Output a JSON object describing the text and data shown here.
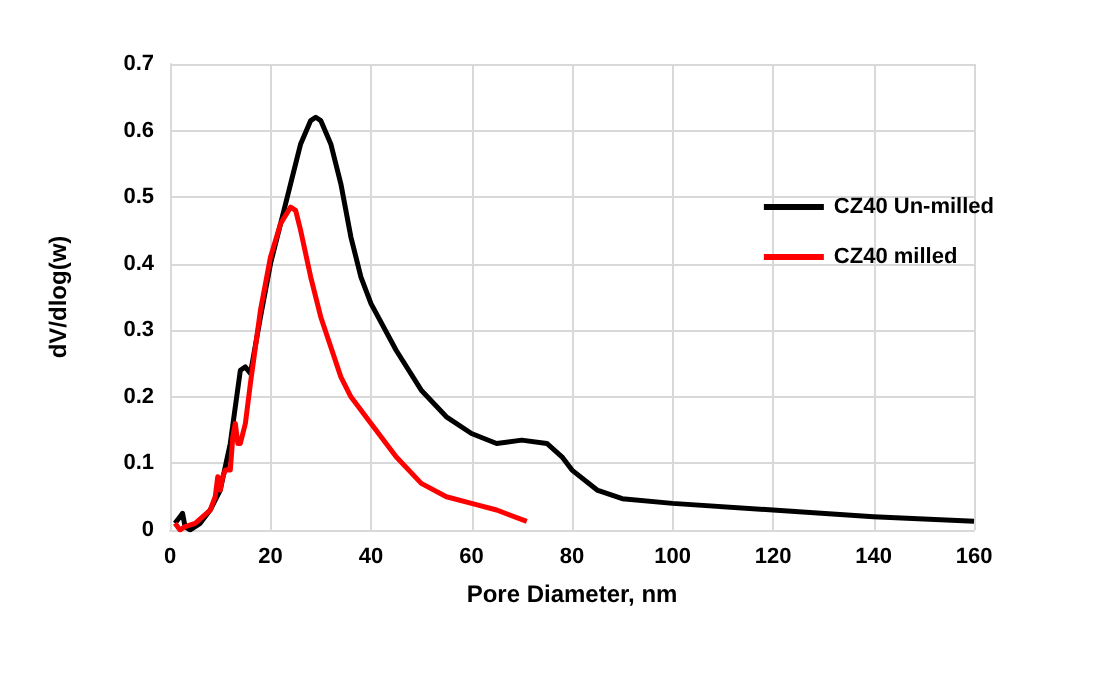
{
  "chart_data": {
    "type": "line",
    "xlabel": "Pore Diameter, nm",
    "ylabel": "dV/dlog(w)",
    "xlim": [
      0,
      160
    ],
    "xticks": [
      0,
      20,
      40,
      60,
      80,
      100,
      120,
      140,
      160
    ],
    "ylim": [
      0,
      0.7
    ],
    "yticks": [
      0,
      0.1,
      0.2,
      0.3,
      0.4,
      0.5,
      0.6,
      0.7
    ],
    "grid": true,
    "legend": "right",
    "marker": "none",
    "line_style": "solid",
    "series": [
      {
        "name": "CZ40 Un-milled",
        "color": "#000000",
        "x": [
          1,
          2,
          2.5,
          3,
          4,
          6,
          8,
          10,
          12,
          14,
          15,
          16,
          18,
          20,
          22,
          24,
          26,
          28,
          29,
          30,
          32,
          34,
          36,
          38,
          40,
          45,
          50,
          55,
          60,
          65,
          70,
          75,
          78,
          80,
          85,
          90,
          100,
          120,
          140,
          160
        ],
        "values": [
          0.01,
          0.02,
          0.025,
          0.005,
          0,
          0.01,
          0.03,
          0.06,
          0.13,
          0.24,
          0.245,
          0.235,
          0.32,
          0.4,
          0.46,
          0.52,
          0.58,
          0.615,
          0.62,
          0.615,
          0.58,
          0.52,
          0.44,
          0.38,
          0.34,
          0.27,
          0.21,
          0.17,
          0.145,
          0.13,
          0.135,
          0.13,
          0.11,
          0.09,
          0.06,
          0.047,
          0.04,
          0.03,
          0.02,
          0.013
        ]
      },
      {
        "name": "CZ40 milled",
        "color": "#ff0000",
        "x": [
          1,
          2,
          3,
          5,
          8,
          9,
          9.5,
          10,
          10.5,
          11,
          12,
          12.5,
          13,
          13.5,
          14,
          15,
          16,
          18,
          20,
          22,
          24,
          25,
          26,
          28,
          30,
          34,
          36,
          40,
          45,
          50,
          55,
          60,
          65,
          71
        ],
        "values": [
          0.01,
          0,
          0.005,
          0.01,
          0.03,
          0.05,
          0.08,
          0.06,
          0.08,
          0.09,
          0.09,
          0.14,
          0.16,
          0.13,
          0.13,
          0.16,
          0.22,
          0.33,
          0.41,
          0.46,
          0.485,
          0.48,
          0.45,
          0.38,
          0.32,
          0.23,
          0.2,
          0.16,
          0.11,
          0.07,
          0.05,
          0.04,
          0.03,
          0.013
        ]
      }
    ]
  }
}
